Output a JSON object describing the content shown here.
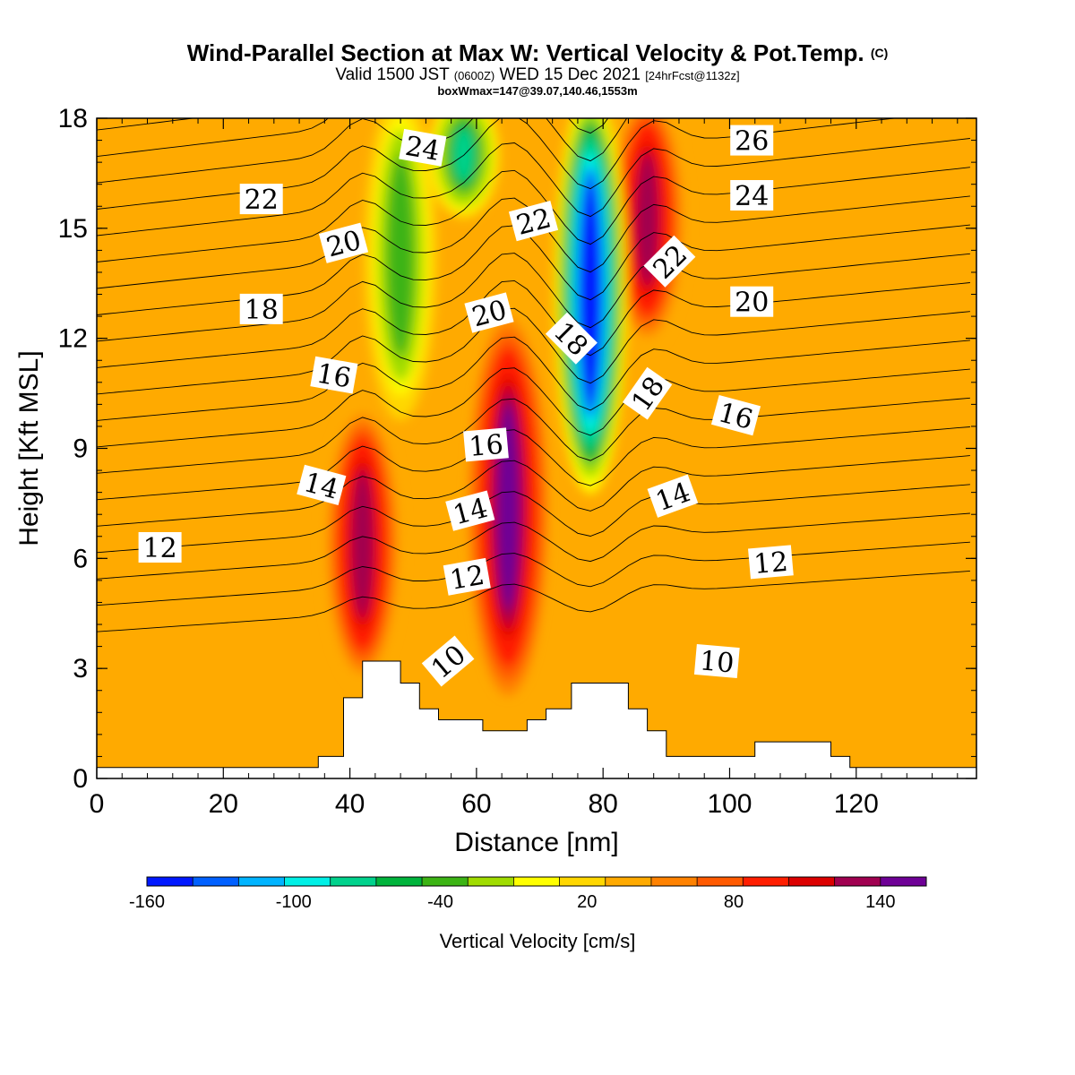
{
  "header": {
    "title": "Wind-Parallel Section at Max W: Vertical Velocity & Pot.Temp.",
    "copyright": "(C)",
    "valid_prefix": "Valid 1500 JST",
    "valid_utc": "(0600Z)",
    "valid_date": "WED 15 Dec 2021",
    "forecast": "[24hrFcst@1132z]",
    "box_info": "boxWmax=147@39.07,140.46,1553m"
  },
  "chart_data": {
    "type": "heatmap",
    "xlabel": "Distance [nm]",
    "ylabel": "Height [Kft MSL]",
    "xlim": [
      0,
      139
    ],
    "ylim": [
      0,
      18
    ],
    "x_ticks": [
      "0",
      "20",
      "40",
      "60",
      "80",
      "100",
      "120"
    ],
    "x_tick_values": [
      0,
      20,
      40,
      60,
      80,
      100,
      120
    ],
    "y_ticks": [
      "0",
      "3",
      "6",
      "9",
      "12",
      "15",
      "18"
    ],
    "y_tick_values": [
      0,
      3,
      6,
      9,
      12,
      15,
      18
    ],
    "fill_variable": "Vertical Velocity",
    "contour_variable": "Pot.Temp.",
    "colorbar": {
      "label": "Vertical Velocity [cm/s]",
      "tick_labels": [
        "-160",
        "-100",
        "-40",
        "20",
        "80",
        "140"
      ],
      "tick_values": [
        -160,
        -100,
        -40,
        20,
        80,
        140
      ],
      "bins": [
        -160,
        140
      ],
      "colors": [
        "#0018ff",
        "#0060ff",
        "#00b4ff",
        "#00f0e6",
        "#00d28c",
        "#00b43c",
        "#3cb414",
        "#a0dc00",
        "#ffff00",
        "#ffd700",
        "#ffaa00",
        "#ff8200",
        "#ff5a00",
        "#ff1e00",
        "#dc0000",
        "#a00050",
        "#6e0096"
      ]
    },
    "terrain_profile": [
      [
        0,
        0.3
      ],
      [
        35,
        0.3
      ],
      [
        35,
        0.6
      ],
      [
        39,
        0.6
      ],
      [
        39,
        2.2
      ],
      [
        42,
        2.2
      ],
      [
        42,
        3.2
      ],
      [
        48,
        3.2
      ],
      [
        48,
        2.6
      ],
      [
        51,
        2.6
      ],
      [
        51,
        1.9
      ],
      [
        54,
        1.9
      ],
      [
        54,
        1.6
      ],
      [
        61,
        1.6
      ],
      [
        61,
        1.3
      ],
      [
        68,
        1.3
      ],
      [
        68,
        1.6
      ],
      [
        71,
        1.6
      ],
      [
        71,
        1.9
      ],
      [
        75,
        1.9
      ],
      [
        75,
        2.6
      ],
      [
        84,
        2.6
      ],
      [
        84,
        1.9
      ],
      [
        87,
        1.9
      ],
      [
        87,
        1.3
      ],
      [
        90,
        1.3
      ],
      [
        90,
        0.6
      ],
      [
        104,
        0.6
      ],
      [
        104,
        1.0
      ],
      [
        116,
        1.0
      ],
      [
        116,
        0.6
      ],
      [
        119,
        0.6
      ],
      [
        119,
        0.3
      ],
      [
        139,
        0.3
      ]
    ],
    "updraft_cores": [
      {
        "x": 42,
        "y_top": 9.5,
        "y_bottom": 3.3,
        "peak_w": 120
      },
      {
        "x": 65,
        "y_top": 11.8,
        "y_bottom": 3.0,
        "peak_w": 147
      },
      {
        "x": 87,
        "y_top": 18,
        "y_bottom": 12.5,
        "peak_w": 120
      }
    ],
    "downdraft_cores": [
      {
        "x": 78,
        "y_top": 18,
        "y_bottom": 8.5,
        "peak_w": -160
      },
      {
        "x": 58,
        "y_top": 18,
        "y_bottom": 16.0,
        "peak_w": -80
      },
      {
        "x": 48,
        "y_top": 18,
        "y_bottom": 10.5,
        "peak_w": -50
      }
    ],
    "contour_labels": [
      {
        "text": "24",
        "x": 51.5,
        "y": 17.2,
        "angle": 10
      },
      {
        "text": "26",
        "x": 103.5,
        "y": 17.4,
        "angle": 0
      },
      {
        "text": "22",
        "x": 26,
        "y": 15.8,
        "angle": 0
      },
      {
        "text": "24",
        "x": 103.5,
        "y": 15.9,
        "angle": 0
      },
      {
        "text": "20",
        "x": 39,
        "y": 14.6,
        "angle": -15
      },
      {
        "text": "22",
        "x": 69,
        "y": 15.2,
        "angle": -15
      },
      {
        "text": "22",
        "x": 90.5,
        "y": 14.1,
        "angle": -45
      },
      {
        "text": "18",
        "x": 26,
        "y": 12.8,
        "angle": 0
      },
      {
        "text": "20",
        "x": 62,
        "y": 12.7,
        "angle": -15
      },
      {
        "text": "20",
        "x": 103.5,
        "y": 13.0,
        "angle": 0
      },
      {
        "text": "18",
        "x": 75,
        "y": 12.0,
        "angle": 45
      },
      {
        "text": "16",
        "x": 37.5,
        "y": 11.0,
        "angle": 10
      },
      {
        "text": "18",
        "x": 87,
        "y": 10.5,
        "angle": -55
      },
      {
        "text": "16",
        "x": 101,
        "y": 9.9,
        "angle": 15
      },
      {
        "text": "16",
        "x": 61.5,
        "y": 9.1,
        "angle": -5
      },
      {
        "text": "14",
        "x": 35.5,
        "y": 8.0,
        "angle": 15
      },
      {
        "text": "14",
        "x": 91,
        "y": 7.7,
        "angle": -20
      },
      {
        "text": "14",
        "x": 59,
        "y": 7.3,
        "angle": -15
      },
      {
        "text": "12",
        "x": 10,
        "y": 6.3,
        "angle": 0
      },
      {
        "text": "12",
        "x": 106.5,
        "y": 5.9,
        "angle": -5
      },
      {
        "text": "12",
        "x": 58.5,
        "y": 5.5,
        "angle": -10
      },
      {
        "text": "10",
        "x": 55.5,
        "y": 3.2,
        "angle": -40
      },
      {
        "text": "10",
        "x": 98,
        "y": 3.2,
        "angle": 5
      }
    ]
  }
}
